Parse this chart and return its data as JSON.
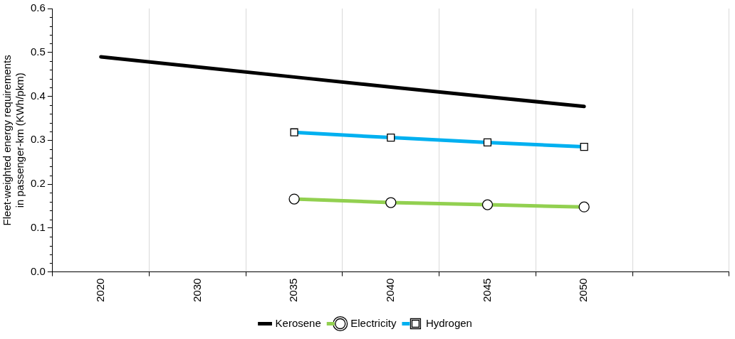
{
  "chart_data": {
    "type": "line",
    "ylabel": "Fleet-weighted energy requirements in passenger-km (KWh/pkm)",
    "categories": [
      "2020",
      "2030",
      "2035",
      "2040",
      "2045",
      "2050",
      null
    ],
    "series": [
      {
        "name": "Kerosene",
        "color": "#000000",
        "marker": "none",
        "values": [
          0.49,
          0.467,
          0.444,
          0.421,
          0.399,
          0.377,
          null
        ]
      },
      {
        "name": "Electricity",
        "color": "#92d050",
        "marker": "circle",
        "values": [
          null,
          null,
          0.166,
          0.158,
          0.153,
          0.148,
          null
        ]
      },
      {
        "name": "Hydrogen",
        "color": "#00b0f0",
        "marker": "square",
        "values": [
          null,
          null,
          0.318,
          0.306,
          0.295,
          0.285,
          null
        ]
      }
    ],
    "ylim": [
      0,
      0.6
    ],
    "yticks": [
      {
        "value": 0,
        "label": "0.0"
      },
      0.1,
      0.2,
      0.3,
      0.4,
      0.5,
      0.6
    ],
    "grid": "x",
    "legend": "bottom"
  }
}
